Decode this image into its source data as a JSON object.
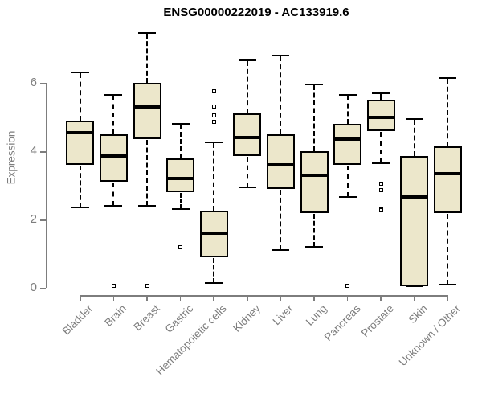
{
  "chart_data": {
    "type": "boxplot",
    "title": "ENSG00000222019 - AC133919.6",
    "xlabel": "",
    "ylabel": "Expression",
    "ylim": [
      0,
      6
    ],
    "yticks": [
      0,
      2,
      4,
      6
    ],
    "grid": false,
    "legend": false,
    "categories": [
      "Bladder",
      "Brain",
      "Breast",
      "Gastric",
      "Hematopoietic cells",
      "Kidney",
      "Liver",
      "Lung",
      "Pancreas",
      "Prostate",
      "Skin",
      "Unknown / Other"
    ],
    "boxes": [
      {
        "category": "Bladder",
        "low": 2.35,
        "q1": 3.6,
        "median": 4.55,
        "q3": 4.9,
        "high": 6.3,
        "outliers": []
      },
      {
        "category": "Brain",
        "low": 2.4,
        "q1": 3.1,
        "median": 3.85,
        "q3": 4.5,
        "high": 5.65,
        "outliers": [
          0.05
        ]
      },
      {
        "category": "Breast",
        "low": 2.4,
        "q1": 4.35,
        "median": 5.3,
        "q3": 6.0,
        "high": 7.45,
        "outliers": [
          0.05
        ]
      },
      {
        "category": "Gastric",
        "low": 2.3,
        "q1": 2.8,
        "median": 3.2,
        "q3": 3.8,
        "high": 4.8,
        "outliers": [
          1.2
        ]
      },
      {
        "category": "Hematopoietic cells",
        "low": 0.15,
        "q1": 0.9,
        "median": 1.6,
        "q3": 2.25,
        "high": 4.25,
        "outliers": [
          5.75,
          5.3,
          5.05,
          4.85
        ]
      },
      {
        "category": "Kidney",
        "low": 2.95,
        "q1": 3.85,
        "median": 4.4,
        "q3": 5.1,
        "high": 6.65,
        "outliers": []
      },
      {
        "category": "Liver",
        "low": 1.1,
        "q1": 2.9,
        "median": 3.6,
        "q3": 4.5,
        "high": 6.8,
        "outliers": []
      },
      {
        "category": "Lung",
        "low": 1.2,
        "q1": 2.2,
        "median": 3.3,
        "q3": 4.0,
        "high": 5.95,
        "outliers": []
      },
      {
        "category": "Pancreas",
        "low": 2.65,
        "q1": 3.6,
        "median": 4.35,
        "q3": 4.8,
        "high": 5.65,
        "outliers": [
          0.05
        ]
      },
      {
        "category": "Prostate",
        "low": 3.65,
        "q1": 4.6,
        "median": 5.0,
        "q3": 5.5,
        "high": 5.7,
        "outliers": [
          3.05,
          2.85,
          2.3,
          2.27
        ]
      },
      {
        "category": "Skin",
        "low": 0.05,
        "q1": 0.05,
        "median": 2.65,
        "q3": 3.85,
        "high": 4.95,
        "outliers": []
      },
      {
        "category": "Unknown / Other",
        "low": 0.1,
        "q1": 2.2,
        "median": 3.35,
        "q3": 4.15,
        "high": 6.15,
        "outliers": []
      }
    ],
    "colors": {
      "box_fill": "#ece7cb",
      "box_border": "#000000",
      "median": "#000000",
      "whisker": "#000000",
      "outlier_border": "#000000",
      "axis": "#7d7d7d",
      "title": "#000000",
      "background": "#ffffff"
    }
  }
}
